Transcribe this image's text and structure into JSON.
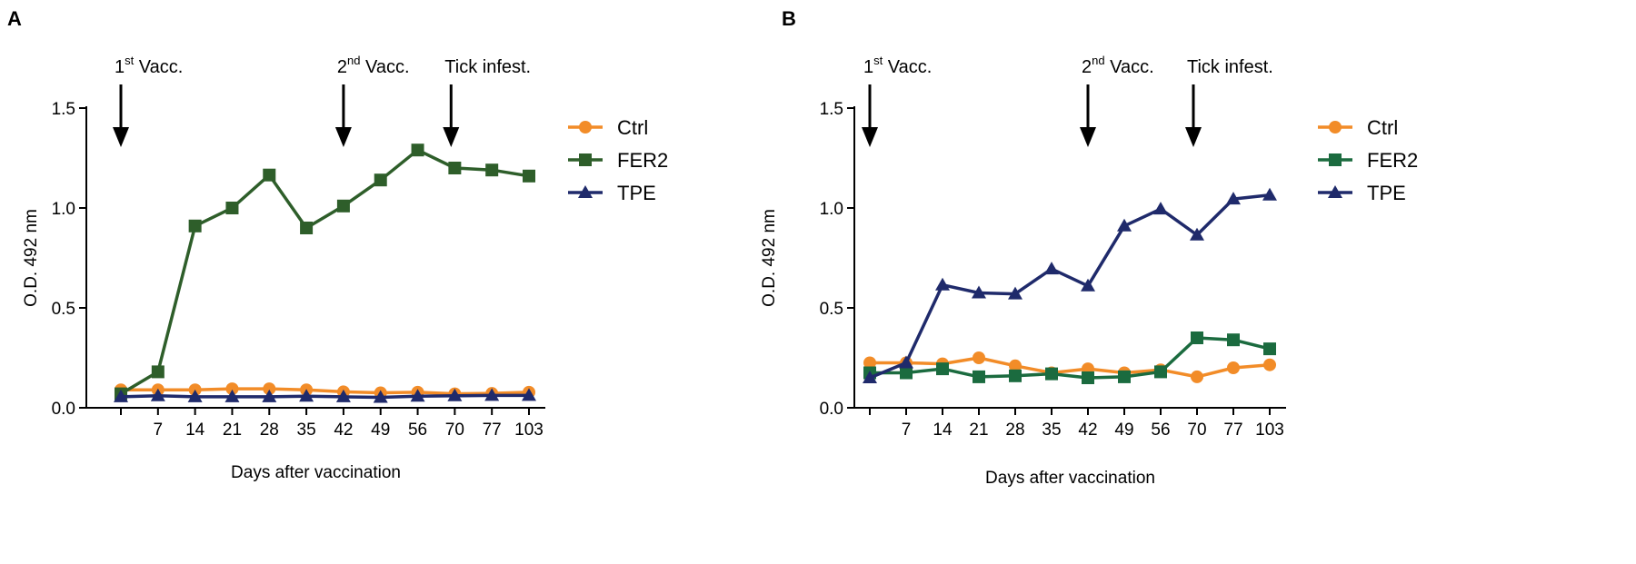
{
  "chart_data": [
    {
      "type": "line",
      "panel_label": "A",
      "xlabel": "Days after vaccination",
      "ylabel": "O.D. 492 nm",
      "x_positions": [
        0,
        1,
        2,
        3,
        4,
        5,
        6,
        7,
        8,
        9,
        10,
        11
      ],
      "categories": [
        "",
        "7",
        "14",
        "21",
        "28",
        "35",
        "42",
        "49",
        "56",
        "70",
        "77",
        "103"
      ],
      "ylim": [
        0,
        1.5
      ],
      "yticks": [
        "0.0",
        "0.5",
        "1.0",
        "1.5"
      ],
      "yticks_values": [
        0,
        0.5,
        1.0,
        1.5
      ],
      "annotations": [
        {
          "base": "1",
          "sup": "st",
          "rest": " Vacc.",
          "x": 0
        },
        {
          "base": "2",
          "sup": "nd",
          "rest": " Vacc.",
          "x": 6.0
        },
        {
          "base": "Tick infest.",
          "sup": "",
          "rest": "",
          "x": 8.9
        }
      ],
      "series": [
        {
          "name": "Ctrl",
          "color": "#F28C28",
          "marker": "circle",
          "values": [
            0.09,
            0.09,
            0.09,
            0.095,
            0.095,
            0.09,
            0.08,
            0.075,
            0.078,
            0.07,
            0.072,
            0.078
          ]
        },
        {
          "name": "FER2",
          "color": "#2E5E2A",
          "marker": "square",
          "values": [
            0.07,
            0.18,
            0.91,
            1.0,
            1.165,
            0.9,
            1.01,
            1.14,
            1.29,
            1.2,
            1.19,
            1.16
          ]
        },
        {
          "name": "TPE",
          "color": "#1F2A6B",
          "marker": "triangle",
          "values": [
            0.055,
            0.06,
            0.055,
            0.055,
            0.055,
            0.058,
            0.055,
            0.052,
            0.058,
            0.06,
            0.062,
            0.062
          ]
        }
      ]
    },
    {
      "type": "line",
      "panel_label": "B",
      "xlabel": "Days after vaccination",
      "ylabel": "O.D. 492 nm",
      "x_positions": [
        0,
        1,
        2,
        3,
        4,
        5,
        6,
        7,
        8,
        9,
        10,
        11
      ],
      "categories": [
        "",
        "7",
        "14",
        "21",
        "28",
        "35",
        "42",
        "49",
        "56",
        "70",
        "77",
        "103"
      ],
      "ylim": [
        0,
        1.5
      ],
      "yticks": [
        "0.0",
        "0.5",
        "1.0",
        "1.5"
      ],
      "yticks_values": [
        0,
        0.5,
        1.0,
        1.5
      ],
      "annotations": [
        {
          "base": "1",
          "sup": "st",
          "rest": " Vacc.",
          "x": 0
        },
        {
          "base": "2",
          "sup": "nd",
          "rest": " Vacc.",
          "x": 6.0
        },
        {
          "base": "Tick infest.",
          "sup": "",
          "rest": "",
          "x": 8.9
        }
      ],
      "series": [
        {
          "name": "Ctrl",
          "color": "#F28C28",
          "marker": "circle",
          "values": [
            0.225,
            0.225,
            0.22,
            0.25,
            0.21,
            0.175,
            0.195,
            0.175,
            0.19,
            0.155,
            0.2,
            0.215
          ]
        },
        {
          "name": "FER2",
          "color": "#1B6B3F",
          "marker": "square",
          "values": [
            0.175,
            0.175,
            0.195,
            0.155,
            0.16,
            0.17,
            0.15,
            0.155,
            0.18,
            0.35,
            0.34,
            0.295
          ]
        },
        {
          "name": "TPE",
          "color": "#1F2A6B",
          "marker": "triangle",
          "values": [
            0.15,
            0.225,
            0.615,
            0.575,
            0.57,
            0.695,
            0.61,
            0.91,
            0.995,
            0.865,
            1.045,
            1.065
          ]
        }
      ]
    }
  ]
}
